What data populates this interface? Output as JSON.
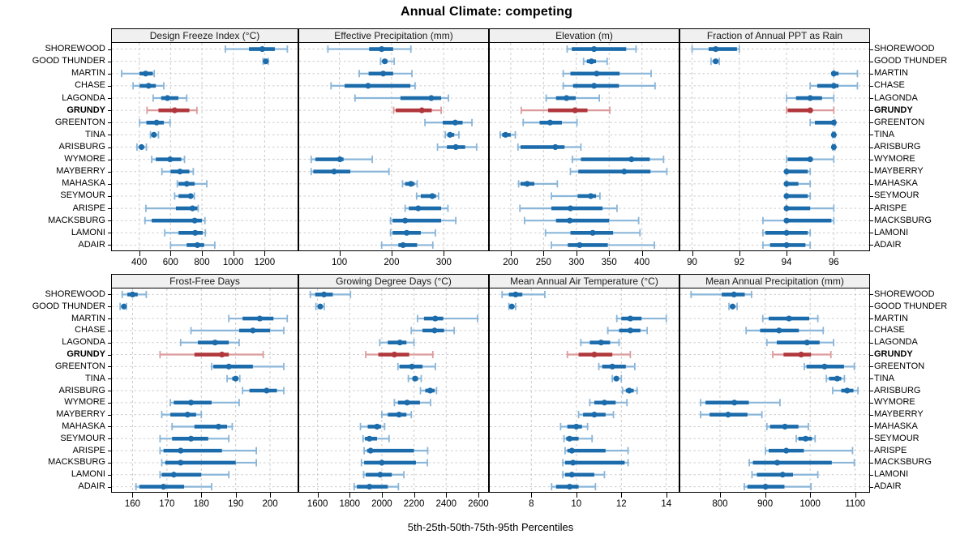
{
  "title": "Annual Climate: competing",
  "footer_xlabel": "5th-25th-50th-75th-95th Percentiles",
  "highlight_station": "GRUNDY",
  "stations": [
    "SHOREWOOD",
    "GOOD THUNDER",
    "MARTIN",
    "CHASE",
    "LAGONDA",
    "GRUNDY",
    "GREENTON",
    "TINA",
    "ARISBURG",
    "WYMORE",
    "MAYBERRY",
    "MAHASKA",
    "SEYMOUR",
    "ARISPE",
    "MACKSBURG",
    "LAMONI",
    "ADAIR"
  ],
  "colors": {
    "blue": "#1c6cab",
    "blue_light": "#8ab6d9",
    "red": "#b0383c",
    "red_light": "#dc9b9d",
    "grid": "#cccccc",
    "panel_border": "#000000",
    "strip_bg": "#f0f0f0",
    "background": "#ffffff"
  },
  "chart_data": [
    {
      "type": "interval-dotplot",
      "panel": "Design Freeze Index (°C)",
      "grid_row": 0,
      "grid_col": 0,
      "xdomain": [
        226,
        1410
      ],
      "xticks": [
        400,
        600,
        800,
        1000,
        1200
      ],
      "percentiles": "5-25-50-75-95",
      "values": [
        [
          950,
          1100,
          1185,
          1265,
          1345
        ],
        [
          1190,
          1200,
          1207,
          1214,
          1223
        ],
        [
          288,
          402,
          441,
          487,
          496
        ],
        [
          361,
          403,
          460,
          506,
          557
        ],
        [
          489,
          540,
          580,
          650,
          703
        ],
        [
          450,
          523,
          626,
          720,
          768
        ],
        [
          403,
          446,
          511,
          557,
          597
        ],
        [
          472,
          486,
          494,
          504,
          523
        ],
        [
          386,
          405,
          415,
          428,
          446
        ],
        [
          480,
          506,
          597,
          668,
          689
        ],
        [
          545,
          600,
          660,
          720,
          745
        ],
        [
          643,
          651,
          703,
          754,
          831
        ],
        [
          626,
          651,
          728,
          745,
          752
        ],
        [
          443,
          634,
          740,
          771,
          776
        ],
        [
          437,
          480,
          754,
          800,
          819
        ],
        [
          563,
          651,
          757,
          805,
          822
        ],
        [
          600,
          703,
          771,
          814,
          882
        ]
      ]
    },
    {
      "type": "interval-dotplot",
      "panel": "Effective Precipitation (mm)",
      "grid_row": 0,
      "grid_col": 1,
      "xdomain": [
        23,
        385
      ],
      "xticks": [
        100,
        200,
        300
      ],
      "percentiles": "5-25-50-75-95",
      "values": [
        [
          78,
          157,
          181,
          203,
          237
        ],
        [
          179,
          183,
          187,
          192,
          205
        ],
        [
          138,
          156,
          184,
          203,
          239
        ],
        [
          84,
          110,
          155,
          236,
          245
        ],
        [
          130,
          217,
          276,
          295,
          309
        ],
        [
          204,
          208,
          258,
          277,
          295
        ],
        [
          264,
          298,
          322,
          336,
          354
        ],
        [
          303,
          307,
          312,
          320,
          329
        ],
        [
          288,
          306,
          323,
          341,
          363
        ],
        [
          46,
          54,
          101,
          108,
          163
        ],
        [
          46,
          50,
          90,
          121,
          195
        ],
        [
          221,
          226,
          237,
          244,
          249
        ],
        [
          248,
          256,
          278,
          285,
          290
        ],
        [
          226,
          233,
          251,
          295,
          308
        ],
        [
          198,
          202,
          226,
          295,
          323
        ],
        [
          198,
          202,
          229,
          256,
          284
        ],
        [
          181,
          213,
          222,
          249,
          279
        ]
      ]
    },
    {
      "type": "interval-dotplot",
      "panel": "Elevation (m)",
      "grid_row": 0,
      "grid_col": 2,
      "xdomain": [
        168,
        456
      ],
      "xticks": [
        200,
        250,
        300,
        350,
        400
      ],
      "percentiles": "5-25-50-75-95",
      "values": [
        [
          286,
          293,
          327,
          376,
          391
        ],
        [
          311,
          316,
          323,
          330,
          347
        ],
        [
          280,
          291,
          331,
          366,
          414
        ],
        [
          280,
          295,
          327,
          365,
          420
        ],
        [
          254,
          269,
          285,
          299,
          335
        ],
        [
          216,
          257,
          298,
          317,
          351
        ],
        [
          219,
          244,
          260,
          278,
          301
        ],
        [
          184,
          187,
          192,
          200,
          207
        ],
        [
          211,
          215,
          268,
          282,
          307
        ],
        [
          294,
          307,
          384,
          412,
          433
        ],
        [
          291,
          303,
          373,
          413,
          438
        ],
        [
          212,
          215,
          225,
          236,
          271
        ],
        [
          262,
          302,
          322,
          330,
          336
        ],
        [
          214,
          262,
          291,
          340,
          362
        ],
        [
          221,
          269,
          290,
          350,
          395
        ],
        [
          253,
          291,
          325,
          356,
          397
        ],
        [
          262,
          287,
          305,
          348,
          419
        ]
      ]
    },
    {
      "type": "interval-dotplot",
      "panel": "Fraction of Annual PPT as Rain",
      "grid_row": 0,
      "grid_col": 3,
      "xdomain": [
        89.5,
        97.5
      ],
      "xticks": [
        90,
        92,
        94,
        96
      ],
      "percentiles": "5-25-50-75-95",
      "values": [
        [
          90,
          90.7,
          91,
          91.9,
          92
        ],
        [
          90.8,
          90.9,
          91,
          91.05,
          91.15
        ],
        [
          96,
          96,
          96,
          96.2,
          97
        ],
        [
          95,
          95.3,
          96,
          96.2,
          97
        ],
        [
          94,
          94.4,
          95,
          95.5,
          96
        ],
        [
          94,
          94.05,
          95,
          95.05,
          96
        ],
        [
          95,
          95.2,
          96,
          96,
          96.05
        ],
        [
          95.95,
          96,
          96,
          96,
          96.05
        ],
        [
          95.95,
          96,
          96,
          96,
          96.05
        ],
        [
          94,
          94.05,
          95,
          95.05,
          96
        ],
        [
          94,
          94,
          94,
          94.9,
          95
        ],
        [
          94,
          94,
          94,
          94.5,
          95
        ],
        [
          94,
          94,
          94,
          94.9,
          95
        ],
        [
          94,
          94,
          94,
          95,
          96
        ],
        [
          93,
          94,
          94,
          95.9,
          96
        ],
        [
          93,
          93.1,
          94,
          94.9,
          95
        ],
        [
          93,
          93.3,
          94,
          94.8,
          95
        ]
      ]
    },
    {
      "type": "interval-dotplot",
      "panel": "Frost-Free Days",
      "grid_row": 1,
      "grid_col": 0,
      "xdomain": [
        154,
        208
      ],
      "xticks": [
        160,
        170,
        180,
        190,
        200
      ],
      "percentiles": "5-25-50-75-95",
      "values": [
        [
          157,
          158.5,
          160,
          161.5,
          164
        ],
        [
          156.4,
          157,
          157.5,
          157.8,
          158.2
        ],
        [
          188,
          192,
          197,
          201,
          205
        ],
        [
          177,
          191,
          195,
          200,
          204
        ],
        [
          174,
          179,
          184,
          188,
          191
        ],
        [
          168,
          178,
          186,
          188,
          198
        ],
        [
          183,
          183.5,
          188,
          195,
          204
        ],
        [
          187.5,
          189,
          190,
          190.6,
          191.2
        ],
        [
          192,
          194,
          199,
          202,
          204
        ],
        [
          171,
          172,
          177,
          183,
          191
        ],
        [
          168.5,
          171,
          176,
          178.5,
          180
        ],
        [
          171.5,
          178,
          185,
          187.5,
          189
        ],
        [
          168,
          171.5,
          177,
          182,
          188
        ],
        [
          168,
          169,
          174,
          186,
          196
        ],
        [
          168.5,
          169.5,
          174,
          190,
          196
        ],
        [
          168,
          168.5,
          172,
          180,
          188
        ],
        [
          161,
          162,
          169,
          175,
          183
        ]
      ]
    },
    {
      "type": "interval-dotplot",
      "panel": "Growing Degree Days (°C)",
      "grid_row": 1,
      "grid_col": 1,
      "xdomain": [
        1486,
        2661
      ],
      "xticks": [
        1600,
        1800,
        2000,
        2200,
        2400,
        2600
      ],
      "percentiles": "5-25-50-75-95",
      "values": [
        [
          1555,
          1585,
          1640,
          1695,
          1805
        ],
        [
          1590,
          1605,
          1617,
          1628,
          1642
        ],
        [
          2222,
          2262,
          2332,
          2382,
          2595
        ],
        [
          2183,
          2253,
          2328,
          2387,
          2450
        ],
        [
          1987,
          2037,
          2112,
          2153,
          2200
        ],
        [
          1900,
          1978,
          2078,
          2170,
          2317
        ],
        [
          2100,
          2110,
          2187,
          2253,
          2333
        ],
        [
          2165,
          2190,
          2207,
          2225,
          2245
        ],
        [
          2240,
          2270,
          2300,
          2328,
          2340
        ],
        [
          2078,
          2100,
          2157,
          2237,
          2303
        ],
        [
          2000,
          2037,
          2107,
          2153,
          2183
        ],
        [
          1867,
          1912,
          1970,
          1995,
          2017
        ],
        [
          1883,
          1895,
          1923,
          1970,
          2045
        ],
        [
          1890,
          1908,
          1930,
          2200,
          2285
        ],
        [
          1873,
          1890,
          2000,
          2212,
          2283
        ],
        [
          1887,
          1900,
          1990,
          2062,
          2137
        ],
        [
          1828,
          1845,
          1923,
          2037,
          2103
        ]
      ]
    },
    {
      "type": "interval-dotplot",
      "panel": "Mean Annual Air Temperature (°C)",
      "grid_row": 1,
      "grid_col": 2,
      "xdomain": [
        6.15,
        14.55
      ],
      "xticks": [
        8,
        10,
        12,
        14
      ],
      "percentiles": "5-25-50-75-95",
      "values": [
        [
          6.7,
          7.0,
          7.3,
          7.6,
          8.6
        ],
        [
          7.0,
          7.05,
          7.13,
          7.2,
          7.3
        ],
        [
          11.8,
          12.0,
          12.4,
          12.9,
          14.0
        ],
        [
          11.4,
          11.9,
          12.4,
          12.85,
          13.15
        ],
        [
          10.2,
          10.6,
          11.1,
          11.5,
          11.9
        ],
        [
          9.6,
          10.1,
          10.8,
          11.6,
          12.4
        ],
        [
          11.0,
          11.15,
          11.6,
          12.2,
          12.6
        ],
        [
          11.6,
          11.7,
          11.78,
          11.88,
          12.0
        ],
        [
          12.05,
          12.2,
          12.35,
          12.55,
          12.7
        ],
        [
          10.6,
          10.8,
          11.25,
          11.75,
          12.25
        ],
        [
          10.1,
          10.3,
          10.8,
          11.3,
          11.65
        ],
        [
          9.3,
          9.6,
          10.0,
          10.25,
          10.5
        ],
        [
          9.45,
          9.55,
          9.7,
          10.1,
          10.7
        ],
        [
          9.5,
          9.6,
          9.8,
          11.3,
          12.3
        ],
        [
          9.4,
          9.5,
          9.85,
          12.15,
          12.3
        ],
        [
          9.4,
          9.5,
          9.8,
          10.8,
          11.25
        ],
        [
          8.9,
          9.1,
          9.7,
          10.1,
          10.85
        ]
      ]
    },
    {
      "type": "interval-dotplot",
      "panel": "Mean Annual Precipitation (mm)",
      "grid_row": 1,
      "grid_col": 3,
      "xdomain": [
        712,
        1131
      ],
      "xticks": [
        800,
        900,
        1000,
        1100
      ],
      "percentiles": "5-25-50-75-95",
      "values": [
        [
          736,
          804,
          831,
          855,
          870
        ],
        [
          820,
          824,
          828,
          833,
          838
        ],
        [
          895,
          908,
          953,
          998,
          1017
        ],
        [
          858,
          889,
          931,
          975,
          1029
        ],
        [
          904,
          926,
          993,
          1021,
          1052
        ],
        [
          917,
          941,
          980,
          1002,
          1046
        ],
        [
          987,
          992,
          1032,
          1075,
          1098
        ],
        [
          1036,
          1042,
          1060,
          1069,
          1076
        ],
        [
          1050,
          1069,
          1082,
          1096,
          1106
        ],
        [
          757,
          768,
          832,
          864,
          933
        ],
        [
          757,
          777,
          818,
          861,
          893
        ],
        [
          904,
          911,
          944,
          974,
          996
        ],
        [
          969,
          974,
          990,
          1004,
          1011
        ],
        [
          901,
          908,
          947,
          986,
          1094
        ],
        [
          865,
          873,
          927,
          1048,
          1098
        ],
        [
          871,
          882,
          939,
          962,
          1017
        ],
        [
          854,
          861,
          901,
          943,
          1002
        ]
      ]
    }
  ]
}
